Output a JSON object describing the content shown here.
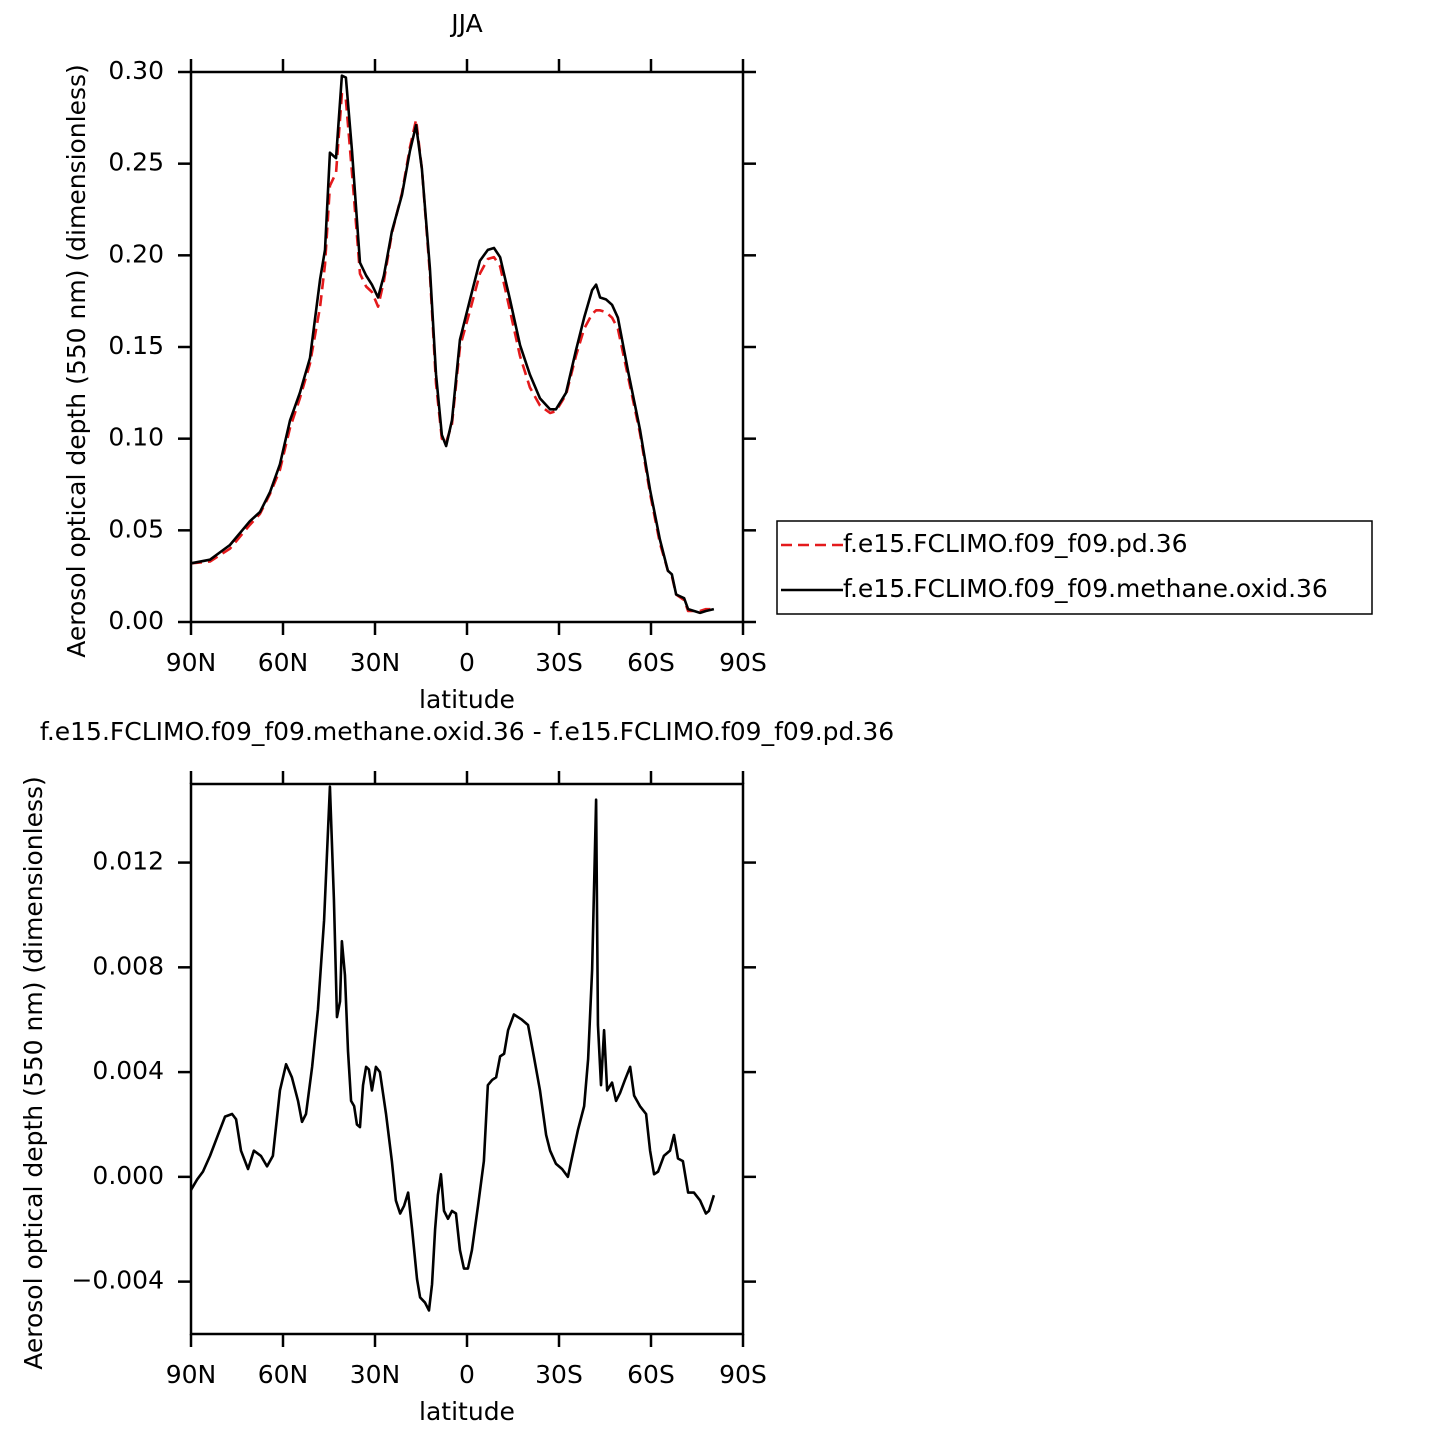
{
  "chart_data": [
    {
      "type": "line",
      "title": "JJA",
      "xlabel": "latitude",
      "ylabel": "Aerosol optical depth (550 nm) (dimensionless)",
      "xlim": [
        90,
        -90
      ],
      "xticks": [
        {
          "value": 90,
          "label": "90N"
        },
        {
          "value": 60,
          "label": "60N"
        },
        {
          "value": 30,
          "label": "30N"
        },
        0,
        {
          "value": -30,
          "label": "30S"
        },
        {
          "value": -60,
          "label": "60S"
        },
        {
          "value": -90,
          "label": "90S"
        }
      ],
      "ylim": [
        0,
        0.3
      ],
      "yticks": [
        {
          "value": 0,
          "label": "0.00"
        },
        0.05,
        {
          "value": 0.1,
          "label": "0.10"
        },
        0.15,
        {
          "value": 0.2,
          "label": "0.20"
        },
        0.25,
        {
          "value": 0.3,
          "label": "0.30"
        }
      ],
      "legend": "right",
      "x": [
        90,
        83.8,
        77.3,
        70.8,
        67.5,
        64.2,
        61,
        57.7,
        54.5,
        51.2,
        47.9,
        46.3,
        44.7,
        42.7,
        40.8,
        39.5,
        37.5,
        34.9,
        32.9,
        31,
        29,
        27.1,
        24.5,
        21.2,
        18.6,
        16.6,
        14.7,
        12.1,
        10.1,
        8.2,
        6.8,
        4.9,
        2.3,
        -1,
        -4.2,
        -6.8,
        -8.8,
        -10.8,
        -14,
        -17.3,
        -20.5,
        -23.8,
        -27.1,
        -29,
        -32.3,
        -35.5,
        -38.2,
        -40.8,
        -42.1,
        -43.4,
        -45.3,
        -47.3,
        -49.2,
        -52.5,
        -56.4,
        -59.7,
        -62.9,
        -65.5,
        -66.8,
        -68.2,
        -70.8,
        -72.1,
        -76,
        -77.9,
        -80.5
      ],
      "series": [
        {
          "name": "f.e15.FCLIMO.f09_f09.pd.36",
          "color": "#e41a1c",
          "dashed": true,
          "values": [
            0.032,
            0.033,
            0.04,
            0.053,
            0.059,
            0.07,
            0.083,
            0.106,
            0.122,
            0.141,
            0.172,
            0.195,
            0.238,
            0.245,
            0.288,
            0.285,
            0.245,
            0.19,
            0.183,
            0.18,
            0.172,
            0.186,
            0.212,
            0.234,
            0.259,
            0.274,
            0.247,
            0.19,
            0.13,
            0.1,
            0.098,
            0.108,
            0.15,
            0.17,
            0.19,
            0.198,
            0.199,
            0.194,
            0.17,
            0.145,
            0.128,
            0.118,
            0.114,
            0.115,
            0.124,
            0.145,
            0.16,
            0.168,
            0.17,
            0.17,
            0.169,
            0.166,
            0.16,
            0.134,
            0.103,
            0.07,
            0.043,
            0.028,
            0.025,
            0.015,
            0.012,
            0.006,
            0.006,
            0.007,
            0.007
          ]
        },
        {
          "name": "f.e15.FCLIMO.f09_f09.methane.oxid.36",
          "color": "#000000",
          "dashed": false,
          "values": [
            0.032,
            0.034,
            0.042,
            0.055,
            0.06,
            0.071,
            0.086,
            0.11,
            0.125,
            0.144,
            0.187,
            0.203,
            0.256,
            0.253,
            0.298,
            0.297,
            0.257,
            0.196,
            0.189,
            0.184,
            0.177,
            0.189,
            0.213,
            0.233,
            0.257,
            0.271,
            0.247,
            0.193,
            0.135,
            0.102,
            0.096,
            0.11,
            0.154,
            0.176,
            0.197,
            0.203,
            0.204,
            0.199,
            0.176,
            0.151,
            0.135,
            0.122,
            0.116,
            0.116,
            0.125,
            0.148,
            0.166,
            0.181,
            0.184,
            0.177,
            0.176,
            0.173,
            0.166,
            0.137,
            0.105,
            0.072,
            0.045,
            0.028,
            0.026,
            0.015,
            0.013,
            0.007,
            0.005,
            0.006,
            0.007
          ]
        }
      ]
    },
    {
      "type": "line",
      "title": "f.e15.FCLIMO.f09_f09.methane.oxid.36 - f.e15.FCLIMO.f09_f09.pd.36",
      "xlabel": "latitude",
      "ylabel": "Aerosol optical depth (550 nm) (dimensionless)",
      "xlim": [
        90,
        -90
      ],
      "xticks": [
        {
          "value": 90,
          "label": "90N"
        },
        {
          "value": 60,
          "label": "60N"
        },
        {
          "value": 30,
          "label": "30N"
        },
        0,
        {
          "value": -30,
          "label": "30S"
        },
        {
          "value": -60,
          "label": "60S"
        },
        {
          "value": -90,
          "label": "90S"
        }
      ],
      "ylim": [
        -0.006,
        0.015
      ],
      "yticks": [
        {
          "value": -0.004,
          "label": "−0.004"
        },
        {
          "value": 0,
          "label": "0.000"
        },
        0.004,
        0.008,
        0.012
      ],
      "x": [
        90,
        88,
        86.1,
        83.8,
        81.2,
        78.9,
        76.6,
        75.3,
        73.7,
        71.4,
        69.5,
        67.2,
        65.2,
        63.3,
        61,
        59,
        57.1,
        55.1,
        53.8,
        52.5,
        50.5,
        48.6,
        46.6,
        44.7,
        43.4,
        42.4,
        41.4,
        40.8,
        39.8,
        38.8,
        37.8,
        36.8,
        35.9,
        34.9,
        33.9,
        32.9,
        32,
        31,
        29.7,
        28.4,
        26.4,
        24.5,
        23.2,
        21.8,
        20.5,
        19.2,
        17.9,
        16.3,
        15.3,
        13.7,
        12.4,
        11.4,
        10.4,
        9.5,
        8.5,
        7.5,
        6.2,
        4.9,
        3.6,
        2.3,
        1,
        -0.3,
        -1.6,
        -3.6,
        -5.5,
        -6.8,
        -8.2,
        -9.5,
        -10.8,
        -12.1,
        -13.4,
        -15.3,
        -16.6,
        -17.9,
        -19.9,
        -21.8,
        -23.8,
        -25.8,
        -27.1,
        -29,
        -31,
        -32.9,
        -34.9,
        -36.2,
        -38.2,
        -39.5,
        -40.8,
        -42.1,
        -42.7,
        -43.7,
        -44.7,
        -45.7,
        -47.3,
        -48.6,
        -49.9,
        -51.5,
        -53.2,
        -54.5,
        -56.4,
        -58.4,
        -59.7,
        -61,
        -62.3,
        -64.2,
        -66.2,
        -67.5,
        -68.8,
        -70.4,
        -72.1,
        -74,
        -76,
        -77.9,
        -78.9,
        -80.5
      ],
      "series": [
        {
          "color": "#000000",
          "dashed": false,
          "values": [
            -0.0005,
            -0.0001,
            0.0002,
            0.0008,
            0.0016,
            0.0023,
            0.0024,
            0.0022,
            0.001,
            0.0003,
            0.001,
            0.0008,
            0.0004,
            0.0008,
            0.0033,
            0.0043,
            0.0038,
            0.0029,
            0.0021,
            0.0024,
            0.0042,
            0.0064,
            0.0098,
            0.0149,
            0.0106,
            0.0061,
            0.0067,
            0.009,
            0.0077,
            0.0048,
            0.0029,
            0.0027,
            0.002,
            0.0019,
            0.0035,
            0.0042,
            0.0041,
            0.0033,
            0.0042,
            0.004,
            0.0024,
            0.0006,
            -0.0009,
            -0.0014,
            -0.0011,
            -0.0006,
            -0.002,
            -0.0039,
            -0.0046,
            -0.0048,
            -0.0051,
            -0.0041,
            -0.002,
            -0.0007,
            0.0001,
            -0.0013,
            -0.0016,
            -0.0013,
            -0.0014,
            -0.0028,
            -0.0035,
            -0.0035,
            -0.0028,
            -0.0011,
            0.0006,
            0.0035,
            0.0037,
            0.0038,
            0.0046,
            0.0047,
            0.0056,
            0.0062,
            0.0061,
            0.006,
            0.0058,
            0.0046,
            0.0033,
            0.0016,
            0.001,
            0.0005,
            0.0003,
            0.0,
            0.0011,
            0.0018,
            0.0027,
            0.0045,
            0.0079,
            0.0144,
            0.0058,
            0.0035,
            0.0056,
            0.0033,
            0.0036,
            0.0029,
            0.0032,
            0.0037,
            0.0042,
            0.0031,
            0.0027,
            0.0024,
            0.001,
            0.0001,
            0.0002,
            0.0008,
            0.001,
            0.0016,
            0.0007,
            0.0006,
            -0.0006,
            -0.0006,
            -0.0009,
            -0.0014,
            -0.0013,
            -0.0007
          ]
        }
      ]
    }
  ]
}
